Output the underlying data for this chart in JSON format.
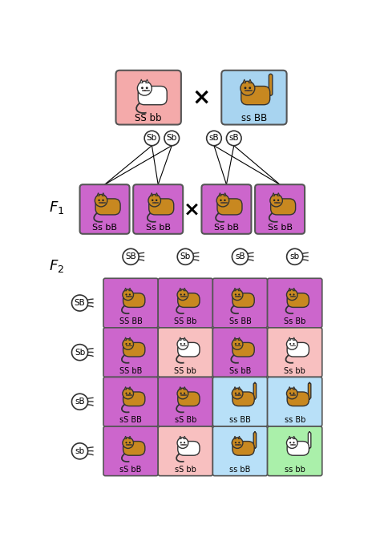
{
  "p_parent1_label": "SS bb",
  "p_parent2_label": "ss BB",
  "p_parent1_bg": "#f4aaaa",
  "p_parent2_bg": "#a8d4f0",
  "f1_labels": [
    "Ss bB",
    "Ss bB",
    "Ss bB",
    "Ss bB"
  ],
  "f1_bg": "#cc66cc",
  "cat_orange": "#c88820",
  "cat_dark": "#7a5500",
  "gametes_p_left": [
    "Sb",
    "Sb"
  ],
  "gametes_p_right": [
    "sB",
    "sB"
  ],
  "gametes_f2_top": [
    "SB",
    "Sb",
    "sB",
    "sb"
  ],
  "gametes_f2_left": [
    "SB",
    "Sb",
    "sB",
    "sb"
  ],
  "f2_display": [
    [
      "SS BB",
      "SS Bb",
      "Ss BB",
      "Ss Bb"
    ],
    [
      "SS bB",
      "SS bb",
      "Ss bB",
      "Ss bb"
    ],
    [
      "sS BB",
      "sS Bb",
      "ss BB",
      "ss Bb"
    ],
    [
      "sS bB",
      "sS bb",
      "ss bB",
      "ss bb"
    ]
  ],
  "f2_colors": [
    [
      "#cc66cc",
      "#cc66cc",
      "#cc66cc",
      "#cc66cc"
    ],
    [
      "#cc66cc",
      "#f8c0c0",
      "#cc66cc",
      "#f8c0c0"
    ],
    [
      "#cc66cc",
      "#cc66cc",
      "#b8e0f8",
      "#b8e0f8"
    ],
    [
      "#cc66cc",
      "#f8c0c0",
      "#b8e0f8",
      "#aaf0aa"
    ]
  ],
  "cat_white_cells": [
    [
      false,
      false,
      false,
      false
    ],
    [
      false,
      true,
      false,
      true
    ],
    [
      false,
      false,
      false,
      false
    ],
    [
      false,
      true,
      false,
      true
    ]
  ],
  "cat_tail_right_cells": [
    [
      false,
      false,
      false,
      false
    ],
    [
      false,
      false,
      false,
      false
    ],
    [
      false,
      false,
      true,
      true
    ],
    [
      false,
      false,
      true,
      true
    ]
  ]
}
